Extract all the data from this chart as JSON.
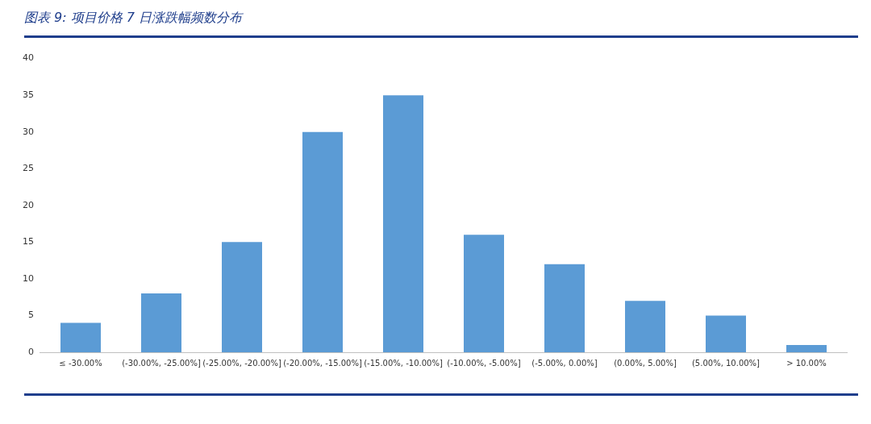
{
  "chart_data": {
    "type": "bar",
    "title": "图表 9: 项目价格 7 日涨跌幅频数分布",
    "categories": [
      "≤ -30.00%",
      "(-30.00%, -25.00%]",
      "(-25.00%, -20.00%]",
      "(-20.00%, -15.00%]",
      "(-15.00%, -10.00%]",
      "(-10.00%, -5.00%]",
      "(-5.00%, 0.00%]",
      "(0.00%, 5.00%]",
      "(5.00%, 10.00%]",
      "> 10.00%"
    ],
    "values": [
      4,
      8,
      15,
      30,
      35,
      16,
      12,
      7,
      5,
      1
    ],
    "color": "#5b9bd5",
    "ylim": [
      0,
      40
    ],
    "yticks": [
      0,
      5,
      10,
      15,
      20,
      25,
      30,
      35,
      40
    ],
    "grid": false,
    "legend": false
  }
}
